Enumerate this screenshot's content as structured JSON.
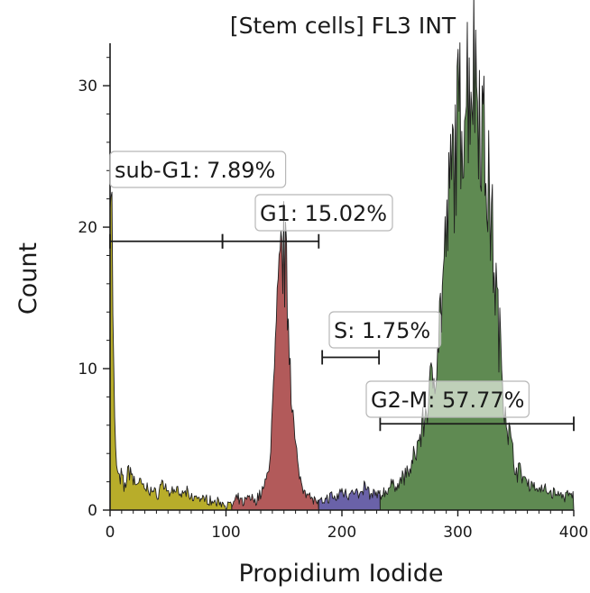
{
  "chart_data": {
    "type": "area",
    "title": "[Stem cells] FL3 INT",
    "xlabel": "Propidium Iodide",
    "ylabel": "Count",
    "xlim": [
      0,
      400
    ],
    "ylim": [
      0,
      33
    ],
    "x_ticks": [
      "0",
      "100",
      "200",
      "300",
      "400"
    ],
    "y_ticks": [
      "0",
      "10",
      "20",
      "30"
    ],
    "grid": false,
    "series": [
      {
        "name": "sub-G1",
        "color": "#b8ad2a",
        "x": [
          0,
          1,
          2,
          3,
          4,
          5,
          6,
          8,
          10,
          12,
          15,
          18,
          20,
          25,
          30,
          35,
          40,
          45,
          50,
          55,
          60,
          65,
          70,
          75,
          80,
          85,
          90,
          95,
          100,
          105
        ],
        "y": [
          27,
          24,
          18,
          10,
          6,
          3.5,
          3,
          2,
          2.5,
          1.5,
          2.5,
          3,
          2,
          2,
          1.5,
          1.5,
          1,
          2,
          1.2,
          1.5,
          1,
          1.3,
          0.8,
          1,
          0.7,
          0.8,
          0.5,
          0.6,
          0.4,
          0.3
        ]
      },
      {
        "name": "G1",
        "color": "#b25a5a",
        "x": [
          105,
          110,
          115,
          120,
          125,
          130,
          135,
          138,
          141,
          144,
          147,
          150,
          153,
          156,
          159,
          162,
          165,
          170,
          175,
          180
        ],
        "y": [
          0.3,
          0.8,
          0.5,
          1,
          0.6,
          1.2,
          2,
          4,
          8,
          13,
          17,
          18.5,
          15,
          10,
          5,
          3,
          2,
          1.2,
          0.8,
          0.5
        ]
      },
      {
        "name": "S",
        "color": "#6a62a8",
        "x": [
          180,
          185,
          190,
          195,
          200,
          205,
          210,
          215,
          220,
          225,
          230,
          233
        ],
        "y": [
          0.5,
          0.6,
          1,
          0.8,
          1.4,
          1.1,
          1.6,
          0.9,
          1.7,
          1,
          1.2,
          1
        ]
      },
      {
        "name": "G2-M",
        "color": "#5f8a52",
        "x": [
          233,
          240,
          250,
          260,
          270,
          280,
          285,
          290,
          295,
          300,
          305,
          310,
          315,
          318,
          320,
          325,
          330,
          335,
          340,
          345,
          350,
          360,
          370,
          380,
          390,
          400
        ],
        "y": [
          1,
          1.5,
          2,
          3,
          6,
          10,
          14,
          19,
          24,
          27,
          29,
          31,
          31.5,
          30,
          28,
          24,
          19,
          13,
          8,
          5,
          3,
          2,
          1.5,
          1.3,
          1,
          1
        ]
      }
    ],
    "gates": [
      {
        "label": "sub-G1: 7.89%",
        "x_start": 0,
        "x_end": 97,
        "y": 19
      },
      {
        "label": "G1: 15.02%",
        "x_start": 97,
        "x_end": 180,
        "y": 19
      },
      {
        "label": "S: 1.75%",
        "x_start": 183,
        "x_end": 232,
        "y": 10.8
      },
      {
        "label": "G2-M: 57.77%",
        "x_start": 233,
        "x_end": 400,
        "y": 6.1
      }
    ]
  }
}
